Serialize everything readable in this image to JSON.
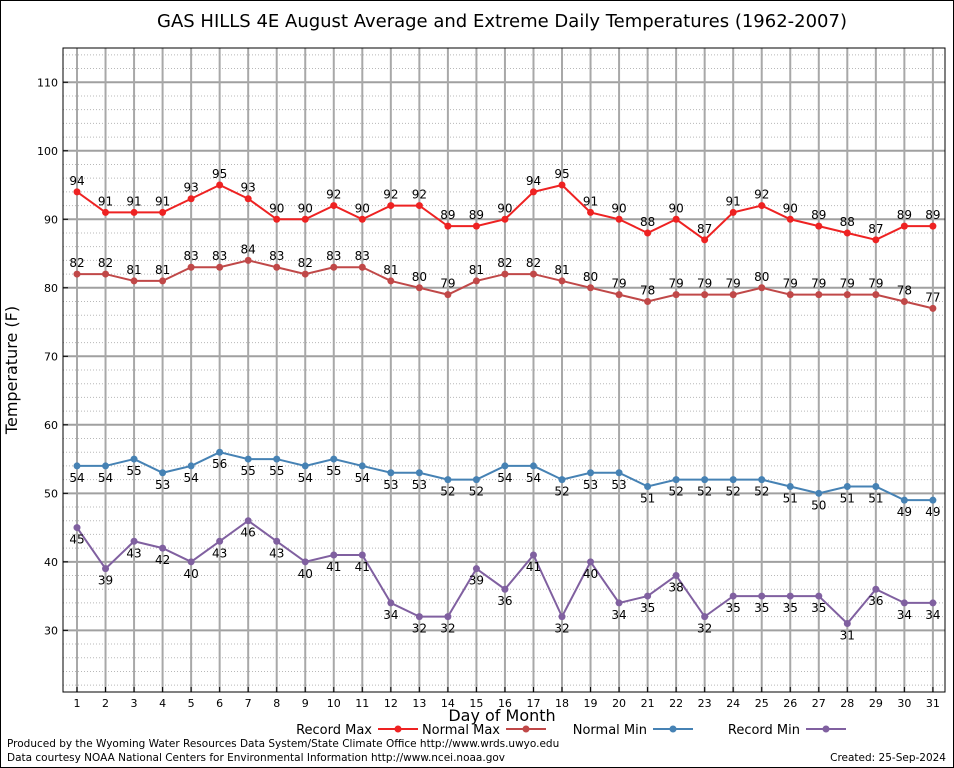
{
  "chart_data": {
    "type": "line",
    "title": "GAS HILLS 4E August Average and Extreme Daily Temperatures (1962-2007)",
    "xlabel": "Day of Month",
    "ylabel": "Temperature (F)",
    "ylim": [
      21,
      115
    ],
    "yticks": [
      30,
      40,
      50,
      60,
      70,
      80,
      90,
      100,
      110
    ],
    "x": [
      1,
      2,
      3,
      4,
      5,
      6,
      7,
      8,
      9,
      10,
      11,
      12,
      13,
      14,
      15,
      16,
      17,
      18,
      19,
      20,
      21,
      22,
      23,
      24,
      25,
      26,
      27,
      28,
      29,
      30,
      31
    ],
    "grid": true,
    "legend_position": "bottom",
    "series": [
      {
        "name": "Record Max",
        "color": "#ee2222",
        "label_pos": "above",
        "values": [
          94,
          91,
          91,
          91,
          93,
          95,
          93,
          90,
          90,
          92,
          90,
          92,
          92,
          89,
          89,
          90,
          94,
          95,
          91,
          90,
          88,
          90,
          87,
          91,
          92,
          90,
          89,
          88,
          87,
          89,
          89
        ]
      },
      {
        "name": "Normal Max",
        "color": "#c04848",
        "label_pos": "above",
        "values": [
          82,
          82,
          81,
          81,
          83,
          83,
          84,
          83,
          82,
          83,
          83,
          81,
          80,
          79,
          81,
          82,
          82,
          81,
          80,
          79,
          78,
          79,
          79,
          79,
          80,
          79,
          79,
          79,
          79,
          78,
          77
        ]
      },
      {
        "name": "Normal Min",
        "color": "#4682b4",
        "label_pos": "below",
        "values": [
          54,
          54,
          55,
          53,
          54,
          56,
          55,
          55,
          54,
          55,
          54,
          53,
          53,
          52,
          52,
          54,
          54,
          52,
          53,
          53,
          51,
          52,
          52,
          52,
          52,
          51,
          50,
          51,
          51,
          49,
          49
        ]
      },
      {
        "name": "Record Min",
        "color": "#8060a0",
        "label_pos": "below",
        "values": [
          45,
          39,
          43,
          42,
          40,
          43,
          46,
          43,
          40,
          41,
          41,
          34,
          32,
          32,
          39,
          36,
          41,
          32,
          40,
          34,
          35,
          38,
          32,
          35,
          35,
          35,
          35,
          31,
          36,
          34,
          34
        ]
      }
    ]
  },
  "footer": {
    "line1": "Produced by the Wyoming Water Resources Data System/State Climate Office http://www.wrds.uwyo.edu",
    "line2": "Data courtesy NOAA National Centers for Environmental Information http://www.ncei.noaa.gov",
    "created": "Created:  25-Sep-2024"
  }
}
